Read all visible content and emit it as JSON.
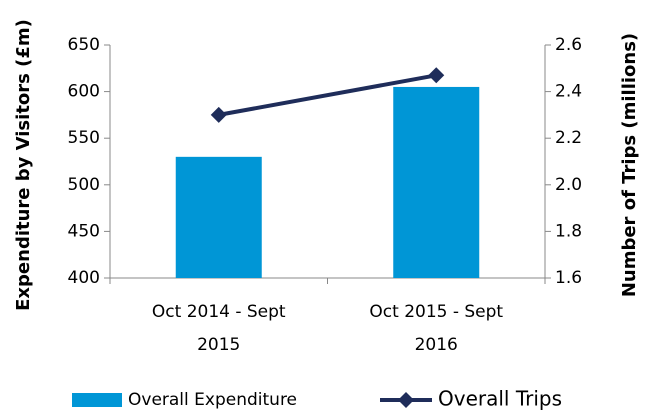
{
  "chart_data": {
    "type": "bar",
    "categories": [
      "Oct 2014 - Sept 2015",
      "Oct 2015 - Sept 2016"
    ],
    "ylabel": "Expenditure by Visitors (£m)",
    "y2label": "Number of Trips (millions)",
    "ylim": [
      400,
      650
    ],
    "yticks": [
      400,
      450,
      500,
      550,
      600,
      650
    ],
    "y2lim": [
      1.6,
      2.6
    ],
    "y2ticks": [
      1.6,
      1.8,
      {
        "value": 2,
        "label": "2.0"
      },
      2.2,
      2.4,
      2.6
    ],
    "series": [
      {
        "name": "Overall Expenditure",
        "type": "bar",
        "color": "#0096d6",
        "values": [
          530,
          605
        ]
      },
      {
        "name": "Overall Trips",
        "type": "line",
        "axis": "y2",
        "color": "#1f2d5a",
        "values": [
          2.3,
          2.47
        ]
      }
    ],
    "legend": "bottom"
  }
}
